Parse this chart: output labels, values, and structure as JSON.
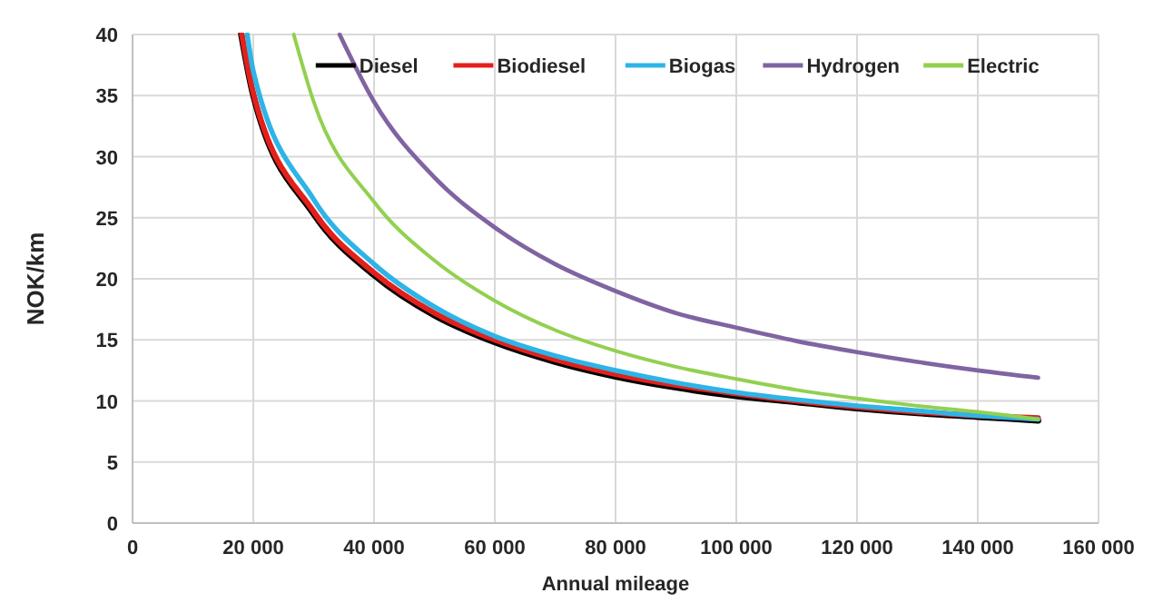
{
  "chart_data": {
    "type": "line",
    "xlabel": "Annual mileage",
    "ylabel": "NOK/km",
    "xlim": [
      0,
      160000
    ],
    "ylim": [
      0,
      40
    ],
    "xticks": [
      {
        "value": 0,
        "label": "0"
      },
      {
        "value": 20000,
        "label": "20 000"
      },
      {
        "value": 40000,
        "label": "40 000"
      },
      {
        "value": 60000,
        "label": "60 000"
      },
      {
        "value": 80000,
        "label": "80 000"
      },
      {
        "value": 100000,
        "label": "100 000"
      },
      {
        "value": 120000,
        "label": "120 000"
      },
      {
        "value": 140000,
        "label": "140 000"
      },
      {
        "value": 160000,
        "label": "160 000"
      }
    ],
    "yticks": [
      0,
      5,
      10,
      15,
      20,
      25,
      30,
      35,
      40
    ],
    "grid": true,
    "legend": "top right",
    "marker": "none",
    "line_style": "solid",
    "series": [
      {
        "name": "Diesel",
        "color": "#000000",
        "x": [
          18000,
          20000,
          30000,
          40000,
          50000,
          60000,
          70000,
          80000,
          90000,
          100000,
          110000,
          120000,
          130000,
          140000,
          150000
        ],
        "values": [
          40,
          35,
          25.3,
          20.3,
          17,
          14.8,
          13.2,
          12,
          11.1,
          10.4,
          9.9,
          9.4,
          9,
          8.7,
          8.4
        ]
      },
      {
        "name": "Biodiesel",
        "color": "#e3201b",
        "x": [
          18100,
          20000,
          30000,
          40000,
          50000,
          60000,
          70000,
          80000,
          90000,
          100000,
          110000,
          120000,
          130000,
          140000,
          150000
        ],
        "values": [
          40,
          35.2,
          25.5,
          20.5,
          17.2,
          15,
          13.4,
          12.2,
          11.3,
          10.6,
          10,
          9.5,
          9.1,
          8.8,
          8.6
        ]
      },
      {
        "name": "Biogas",
        "color": "#2eb4e6",
        "x": [
          19000,
          20000,
          30000,
          40000,
          50000,
          60000,
          70000,
          80000,
          90000,
          100000,
          110000,
          120000,
          130000,
          140000,
          150000
        ],
        "values": [
          40,
          37,
          26.5,
          21.2,
          17.7,
          15.3,
          13.7,
          12.5,
          11.5,
          10.7,
          10.1,
          9.6,
          9.2,
          8.8,
          8.5
        ]
      },
      {
        "name": "Hydrogen",
        "color": "#8064a2",
        "x": [
          34300,
          40000,
          50000,
          60000,
          70000,
          80000,
          90000,
          100000,
          110000,
          120000,
          130000,
          140000,
          150000
        ],
        "values": [
          40,
          34.5,
          28.3,
          24.2,
          21.2,
          19,
          17.2,
          16,
          14.9,
          14,
          13.2,
          12.5,
          11.9
        ]
      },
      {
        "name": "Electric",
        "color": "#92d050",
        "x": [
          26700,
          30000,
          40000,
          50000,
          60000,
          70000,
          80000,
          90000,
          100000,
          110000,
          120000,
          130000,
          140000,
          150000
        ],
        "values": [
          40,
          34.5,
          26.3,
          21.5,
          18.2,
          15.8,
          14.1,
          12.8,
          11.8,
          10.9,
          10.2,
          9.6,
          9.1,
          8.5
        ]
      }
    ]
  }
}
